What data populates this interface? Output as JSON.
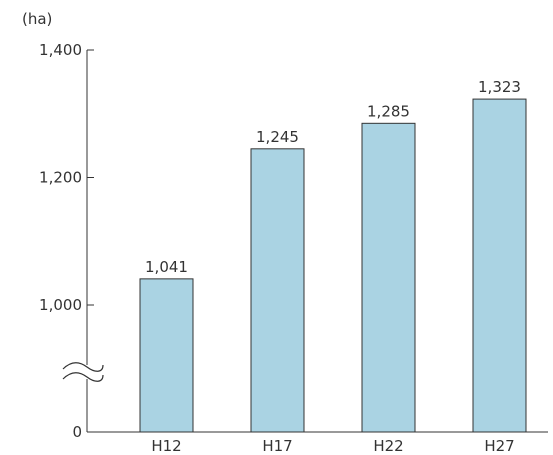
{
  "chart_data": {
    "type": "bar",
    "unit": "(ha)",
    "categories": [
      "H12",
      "H17",
      "H22",
      "H27"
    ],
    "values": [
      1041,
      1245,
      1285,
      1323
    ],
    "data_labels": [
      "1,041",
      "1,245",
      "1,285",
      "1,323"
    ],
    "y_ticks": [
      {
        "value": 0,
        "label": "0"
      },
      {
        "value": 1000,
        "label": "1,000"
      },
      {
        "value": 1200,
        "label": "1,200"
      },
      {
        "value": 1400,
        "label": "1,400"
      }
    ],
    "ylim": [
      0,
      1400
    ],
    "axis_break": {
      "between": [
        0,
        1000
      ]
    },
    "grid": false,
    "bar_color": "#aad3e3",
    "bar_edge_color": "#333333"
  }
}
